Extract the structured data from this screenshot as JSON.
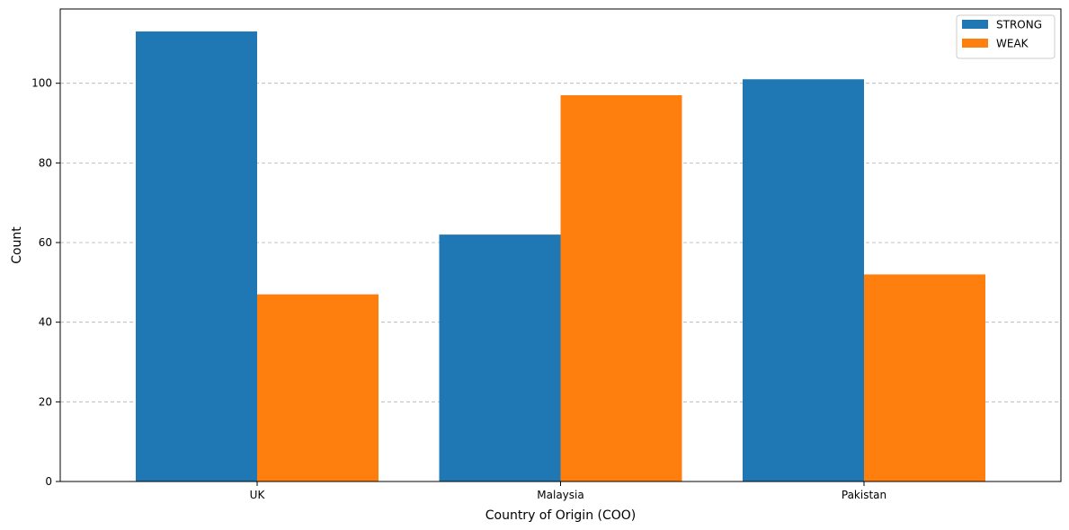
{
  "chart_data": {
    "type": "bar",
    "categories": [
      "UK",
      "Malaysia",
      "Pakistan"
    ],
    "series": [
      {
        "name": "STRONG",
        "values": [
          113,
          62,
          101
        ],
        "color": "#1f77b4"
      },
      {
        "name": "WEAK",
        "values": [
          47,
          97,
          52
        ],
        "color": "#ff7f0e"
      }
    ],
    "xlabel": "Country of Origin (COO)",
    "ylabel": "Count",
    "ylim": [
      0,
      118.65
    ],
    "yticks": [
      0,
      20,
      40,
      60,
      80,
      100
    ],
    "grid": "y-dashed",
    "legend_position": "top-right"
  }
}
